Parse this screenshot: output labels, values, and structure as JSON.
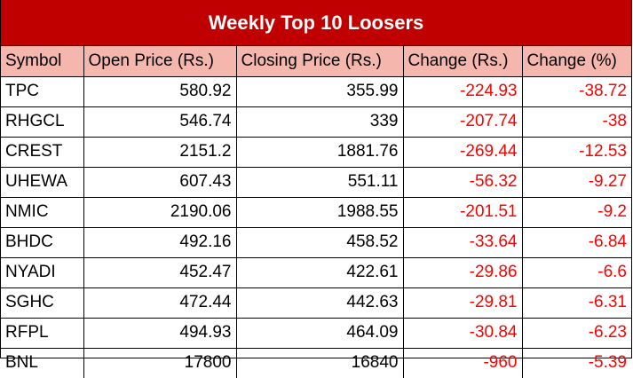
{
  "title": "Weekly Top 10 Loosers",
  "colors": {
    "title_background": "#c00000",
    "title_text": "#ffffff",
    "header_background": "#f4b6ad",
    "negative_text": "#ff0000"
  },
  "headers": [
    "Symbol",
    "Open Price (Rs.)",
    "Closing Price (Rs.)",
    "Change (Rs.)",
    "Change (%)"
  ],
  "rows": [
    [
      "TPC",
      "580.92",
      "355.99",
      "-224.93",
      "-38.72"
    ],
    [
      "RHGCL",
      "546.74",
      "339",
      "-207.74",
      "-38"
    ],
    [
      "CREST",
      "2151.2",
      "1881.76",
      "-269.44",
      "-12.53"
    ],
    [
      "UHEWA",
      "607.43",
      "551.11",
      "-56.32",
      "-9.27"
    ],
    [
      "NMIC",
      "2190.06",
      "1988.55",
      "-201.51",
      "-9.2"
    ],
    [
      "BHDC",
      "492.16",
      "458.52",
      "-33.64",
      "-6.84"
    ],
    [
      "NYADI",
      "452.47",
      "422.61",
      "-29.86",
      "-6.6"
    ],
    [
      "SGHC",
      "472.44",
      "442.63",
      "-29.81",
      "-6.31"
    ],
    [
      "RFPL",
      "494.93",
      "464.09",
      "-30.84",
      "-6.23"
    ],
    [
      "BNL",
      "17800",
      "16840",
      "-960",
      "-5.39"
    ]
  ]
}
